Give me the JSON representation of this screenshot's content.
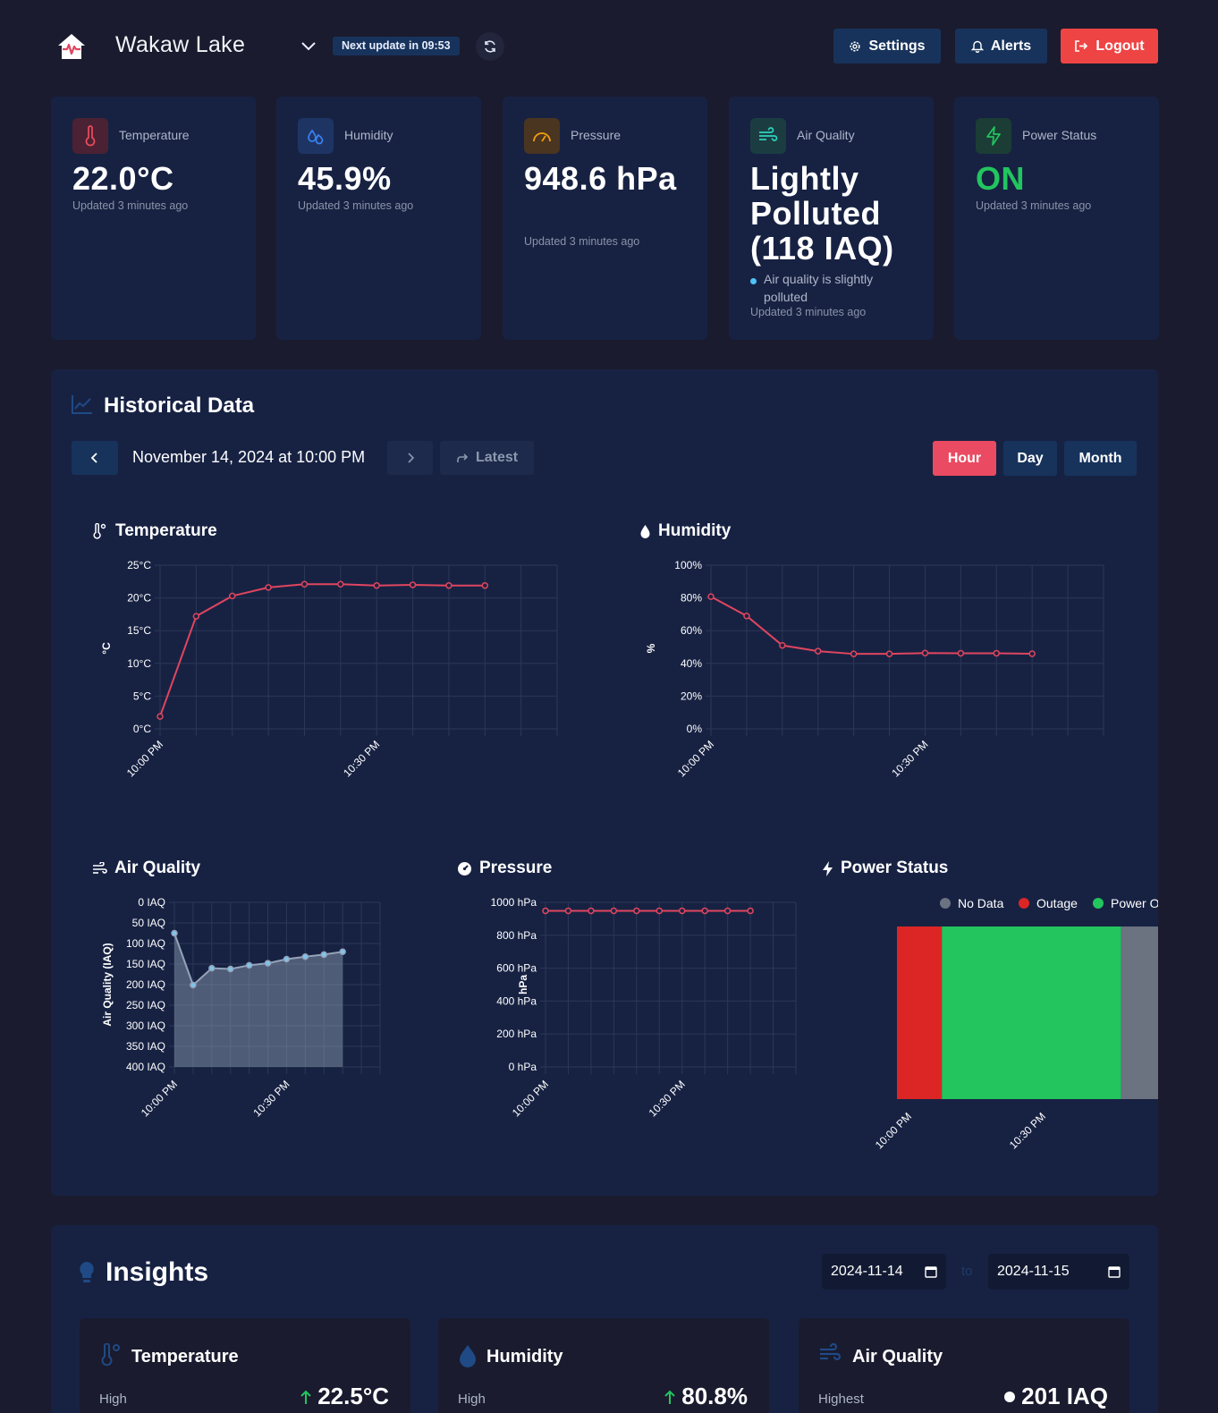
{
  "header": {
    "title": "Wakaw Lake",
    "next_update": "Next update in 09:53",
    "settings_label": "Settings",
    "alerts_label": "Alerts",
    "logout_label": "Logout"
  },
  "cards": {
    "temperature": {
      "label": "Temperature",
      "value": "22.0°C",
      "updated": "Updated 3 minutes ago"
    },
    "humidity": {
      "label": "Humidity",
      "value": "45.9%",
      "updated": "Updated 3 minutes ago"
    },
    "pressure": {
      "label": "Pressure",
      "value": "948.6 hPa",
      "updated": "Updated 3 minutes ago"
    },
    "air_quality": {
      "label": "Air Quality",
      "value": "Lightly Polluted (118 IAQ)",
      "note": "Air quality is slightly polluted",
      "updated": "Updated 3 minutes ago"
    },
    "power": {
      "label": "Power Status",
      "value": "ON",
      "updated": "Updated 3 minutes ago"
    }
  },
  "historical": {
    "title": "Historical Data",
    "date": "November 14, 2024 at 10:00 PM",
    "latest_label": "Latest",
    "ranges": [
      "Hour",
      "Day",
      "Month"
    ],
    "active_range": "Hour"
  },
  "colors": {
    "accent_red": "#e0455f",
    "aq_blue": "#7cc6ee",
    "power_outage": "#dc2626",
    "power_on": "#22c55e",
    "power_nodata": "#6b7280"
  },
  "chart_data": [
    {
      "id": "temperature",
      "type": "line",
      "title": "Temperature",
      "ylabel": "°C",
      "ylim": [
        0,
        25
      ],
      "yticks": [
        "0°C",
        "5°C",
        "10°C",
        "15°C",
        "20°C",
        "25°C"
      ],
      "xticks": [
        "10:00 PM",
        "10:30 PM"
      ],
      "values": [
        1.9,
        17.2,
        20.3,
        21.6,
        22.1,
        22.1,
        21.9,
        22.0,
        21.9,
        21.9
      ]
    },
    {
      "id": "humidity",
      "type": "line",
      "title": "Humidity",
      "ylabel": "%",
      "ylim": [
        0,
        100
      ],
      "yticks": [
        "0%",
        "20%",
        "40%",
        "60%",
        "80%",
        "100%"
      ],
      "xticks": [
        "10:00 PM",
        "10:30 PM"
      ],
      "values": [
        80.8,
        69.0,
        51.0,
        47.5,
        45.8,
        45.8,
        46.3,
        46.2,
        46.2,
        45.9
      ]
    },
    {
      "id": "air_quality",
      "type": "area",
      "title": "Air Quality",
      "ylabel": "Air Quality (IAQ)",
      "ylim": [
        0,
        400
      ],
      "reversed": true,
      "yticks": [
        "0 IAQ",
        "50 IAQ",
        "100 IAQ",
        "150 IAQ",
        "200 IAQ",
        "250 IAQ",
        "300 IAQ",
        "350 IAQ",
        "400 IAQ"
      ],
      "xticks": [
        "10:00 PM",
        "10:30 PM"
      ],
      "values": [
        75,
        201,
        160,
        162,
        153,
        148,
        138,
        132,
        127,
        120
      ]
    },
    {
      "id": "pressure",
      "type": "line",
      "title": "Pressure",
      "ylabel": "hPa",
      "ylim": [
        0,
        1000
      ],
      "yticks": [
        "0 hPa",
        "200 hPa",
        "400 hPa",
        "600 hPa",
        "800 hPa",
        "1000 hPa"
      ],
      "xticks": [
        "10:00 PM",
        "10:30 PM"
      ],
      "values": [
        948.6,
        948.6,
        948.6,
        948.6,
        948.6,
        948.6,
        948.6,
        948.6,
        948.6,
        948.6
      ]
    },
    {
      "id": "power",
      "type": "bar",
      "title": "Power Status",
      "legend": [
        "No Data",
        "Outage",
        "Power On"
      ],
      "xticks": [
        "10:00 PM",
        "10:30 PM"
      ],
      "segments": [
        {
          "status": "Outage",
          "fraction": 0.167
        },
        {
          "status": "Power On",
          "fraction": 0.666
        },
        {
          "status": "No Data",
          "fraction": 0.167
        }
      ]
    }
  ],
  "insights": {
    "title": "Insights",
    "from_date": "2024-11-14",
    "to_label": "to",
    "to_date": "2024-11-15",
    "cards": [
      {
        "title": "Temperature",
        "label": "High",
        "value": "22.5°C"
      },
      {
        "title": "Humidity",
        "label": "High",
        "value": "80.8%"
      },
      {
        "title": "Air Quality",
        "label": "Highest",
        "value": "201 IAQ"
      }
    ]
  }
}
